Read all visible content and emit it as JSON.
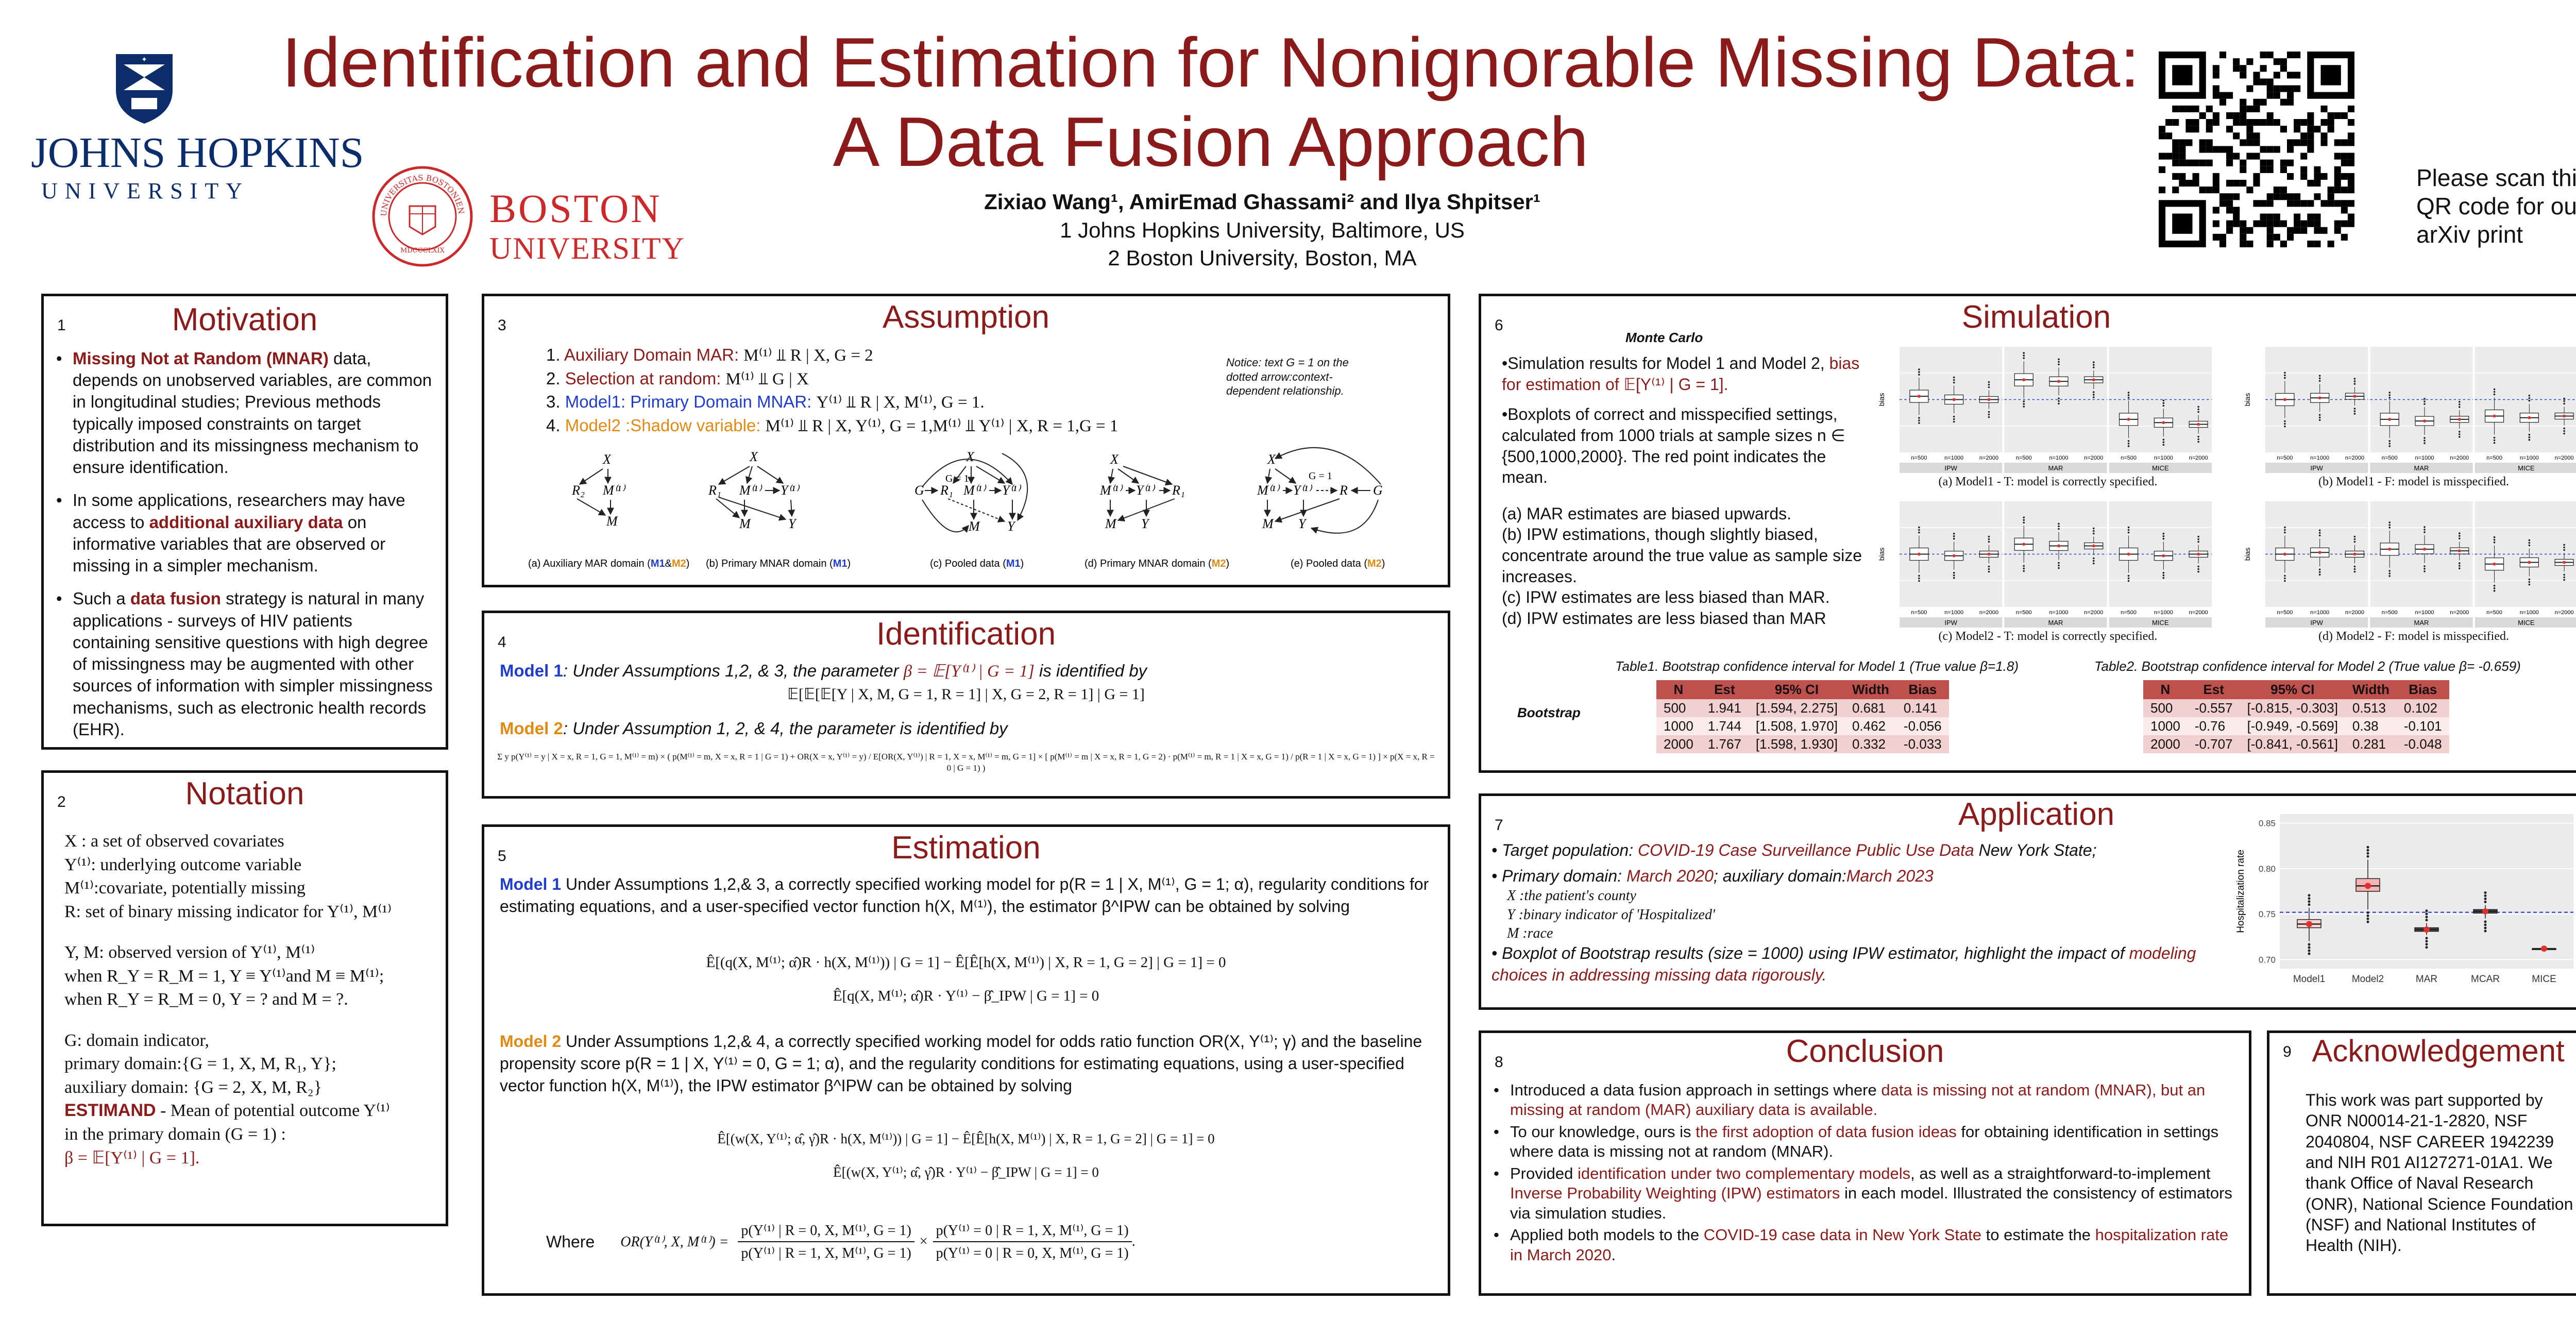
{
  "header": {
    "title_line1": "Identification and Estimation for Nonignorable Missing Data:",
    "title_line2": "A Data Fusion Approach",
    "authors": "Zixiao Wang¹, AmirEmad Ghassami² and Ilya Shpitser¹",
    "affil1": "1 Johns Hopkins University, Baltimore, US",
    "affil2": "2 Boston University, Boston, MA",
    "jhu_name": "JOHNS HOPKINS",
    "jhu_sub": "UNIVERSITY",
    "bu_name": "BOSTON",
    "bu_sub": "UNIVERSITY",
    "bu_seal_text": "UNIVERSITAS BOSTONIENSIS",
    "bu_seal_year": "MDCCCLXIX",
    "qr_note": "Please scan this QR code for our arXiv print"
  },
  "colors": {
    "accent": "#8b1a1a",
    "blue": "#1f3ccf",
    "orange": "#e08a12"
  },
  "motivation": {
    "num": "1",
    "title": "Motivation",
    "b1_hl": "Missing Not at Random (MNAR)",
    "b1_rest": " data, depends on unobserved variables, are common in longitudinal studies; Previous methods typically imposed constraints on target distribution and its missingness mechanism to ensure identification.",
    "b2_pre": "In some applications, researchers may have access to ",
    "b2_hl": "additional auxiliary data",
    "b2_rest": " on informative variables that are observed or missing in a simpler mechanism.",
    "b3_pre": "Such a ",
    "b3_hl": "data fusion",
    "b3_rest": " strategy is natural in many applications - surveys of HIV patients containing sensitive questions with high degree of missingness may be augmented with other sources of information with simpler missingness mechanisms, such as electronic health records (EHR)."
  },
  "notation": {
    "num": "2",
    "title": "Notation",
    "l1": "X : a set of observed covariates",
    "l2": "Y⁽¹⁾: underlying outcome variable",
    "l3": "M⁽¹⁾:covariate, potentially missing",
    "l4": "R: set of binary missing indicator for Y⁽¹⁾, M⁽¹⁾",
    "l5": "Y, M: observed version of Y⁽¹⁾, M⁽¹⁾",
    "l6": "when R_Y = R_M = 1, Y ≡ Y⁽¹⁾and M ≡ M⁽¹⁾;",
    "l7": "when R_Y = R_M = 0, Y = ? and M = ?.",
    "l8": "G: domain indicator,",
    "l9": "primary domain:{G = 1, X, M, R₁, Y};",
    "l10": "auxiliary domain: {G = 2, X, M, R₂}",
    "l11_hl": "ESTIMAND",
    "l11_rest": " - Mean of potential outcome Y⁽¹⁾",
    "l12": "in the primary domain (G = 1) :",
    "l13": "β = 𝔼[Y⁽¹⁾ | G = 1]."
  },
  "assumption": {
    "num": "3",
    "title": "Assumption",
    "a1_label": "Auxiliary Domain MAR:",
    "a1_eq": "M⁽¹⁾ ⫫ R | X, G = 2",
    "a2_label": "Selection at random:",
    "a2_eq": "M⁽¹⁾ ⫫ G | X",
    "a3_label": "Model1: Primary Domain MNAR:",
    "a3_eq": "Y⁽¹⁾ ⫫ R | X, M⁽¹⁾, G = 1.",
    "a4_label": "Model2 :Shadow variable:",
    "a4_eq": "M⁽¹⁾ ⫫ R | X, Y⁽¹⁾, G = 1,M⁽¹⁾ ⫫ Y⁽¹⁾ | X, R = 1,G = 1",
    "notice": "Notice: text G = 1 on the dotted arrow:context-dependent relationship.",
    "cap_a_pre": "(a) Auxiliary MAR domain (",
    "cap_a_m1": "M1",
    "cap_a_amp": "&",
    "cap_a_m2": "M2",
    "cap_a_post": ")",
    "cap_b_pre": "(b) Primary MNAR domain (",
    "cap_b_m": "M1",
    "cap_b_post": ")",
    "cap_c_pre": "(c) Pooled data (",
    "cap_c_m": "M1",
    "cap_c_post": ")",
    "cap_d_pre": "(d) Primary MNAR domain (",
    "cap_d_m": "M2",
    "cap_d_post": ")",
    "cap_e_pre": "(e) Pooled data (",
    "cap_e_m": "M2",
    "cap_e_post": ")",
    "dag_labels": {
      "X": "X",
      "R2": "R₂",
      "M1": "M⁽¹⁾",
      "M": "M",
      "R1": "R₁",
      "Y1": "Y⁽¹⁾",
      "Y": "Y",
      "G": "G",
      "G1": "G = 1",
      "R": "R"
    }
  },
  "identification": {
    "num": "4",
    "title": "Identification",
    "m1_label": "Model 1",
    "m1_text": ": Under Assumptions 1,2, & 3, the parameter ",
    "m1_beta": "β = 𝔼[Y⁽¹⁾ | G = 1]",
    "m1_tail": " is identified by",
    "m1_eq": "𝔼[𝔼[𝔼[Y | X, M, G = 1, R = 1] | X, G = 2, R = 1] | G = 1]",
    "m2_label": "Model 2",
    "m2_text": ": Under Assumption 1, 2, & 4,  the parameter is identified by",
    "m2_eq": "Σ y p(Y⁽¹⁾ = y | X = x, R = 1, G = 1, M⁽¹⁾ = m) × ( p(M⁽¹⁾ = m, X = x, R = 1 | G = 1) + OR(X = x, Y⁽¹⁾ = y) / E[OR(X, Y⁽¹⁾) | R = 1, X = x, M⁽¹⁾ = m, G = 1] × [ p(M⁽¹⁾ = m | X = x, R = 1, G = 2) · p(M⁽¹⁾ = m, R = 1 | X = x, G = 1) / p(R = 1 | X = x, G = 1) ] × p(X = x, R = 0 | G = 1) )"
  },
  "estimation": {
    "num": "5",
    "title": "Estimation",
    "m1_label": "Model 1",
    "m1_text": " Under Assumptions 1,2,& 3, a correctly specified working model for p(R = 1 | X, M⁽¹⁾, G = 1; α), regularity conditions for estimating equations, and a user-specified vector function h(X, M⁽¹⁾), the estimator β^IPW can be obtained by solving",
    "m1_eq1": "Ê[(q(X, M⁽¹⁾; α̂)R · h(X, M⁽¹⁾)) | G = 1] − Ê[Ê[h(X, M⁽¹⁾) | X, R = 1, G = 2] | G = 1] = 0",
    "m1_eq2": "Ê[q(X, M⁽¹⁾; α̂)R · Y⁽¹⁾ − β̂_IPW | G = 1] = 0",
    "m2_label": "Model 2",
    "m2_text": " Under Assumptions 1,2,& 4, a correctly specified working model for odds ratio function OR(X, Y⁽¹⁾; γ) and the baseline propensity score p(R = 1 | X, Y⁽¹⁾ = 0, G = 1; α), and the regularity conditions for estimating equations, using a user-specified vector function h(X, M⁽¹⁾),  the IPW estimator β^IPW can be obtained by solving",
    "m2_eq1": "Ê[(w(X, Y⁽¹⁾; α̂, γ̂)R · h(X, M⁽¹⁾)) | G = 1] − Ê[Ê[h(X, M⁽¹⁾) | X, R = 1, G = 2] | G = 1] = 0",
    "m2_eq2": "Ê[(w(X, Y⁽¹⁾; α̂, γ̂)R · Y⁽¹⁾ − β̂_IPW | G = 1] = 0",
    "where": "Where",
    "or_lhs": "OR(Y⁽¹⁾, X, M⁽¹⁾) =",
    "or_f1_num": "p(Y⁽¹⁾ | R = 0, X, M⁽¹⁾, G = 1)",
    "or_f1_den": "p(Y⁽¹⁾ | R = 1, X, M⁽¹⁾, G = 1)",
    "or_times": "×",
    "or_f2_num": "p(Y⁽¹⁾ = 0 | R = 1, X, M⁽¹⁾, G = 1)",
    "or_f2_den": "p(Y⁽¹⁾ = 0 | R = 0, X, M⁽¹⁾, G = 1)",
    "or_end": "."
  },
  "simulation": {
    "num": "6",
    "title": "Simulation",
    "mc": "Monte Carlo",
    "p1_pre": "•Simulation results for Model 1 and Model 2, ",
    "p1_hl": "bias for estimation of 𝔼[Y⁽¹⁾ | G = 1].",
    "p2": "•Boxplots of correct and misspecified settings, calculated from 1000 trials at sample sizes n ∈ {500,1000,2000}. The red point indicates the mean.",
    "r1": "(a) MAR estimates are biased upwards.",
    "r2": "(b) IPW estimations, though slightly biased, concentrate around the true value as sample size increases.",
    "r3": "(c) IPW estimates are less biased than MAR.",
    "r4": "(d) IPW estimates are less biased than MAR",
    "cap_a": "(a) Model1 - T: model is correctly specified.",
    "cap_b": "(b) Model1 - F: model is misspecified.",
    "cap_c": "(c) Model2 - T: model is correctly specified.",
    "cap_d": "(d) Model2 - F: model is misspecified.",
    "panel_groups": [
      "IPW",
      "MAR",
      "MICE"
    ],
    "ns": [
      "n=500",
      "n=1000",
      "n=2000"
    ],
    "ylab": "bias",
    "t1_caption": "Table1. Bootstrap confidence interval for Model 1 (True value β=1.8)",
    "t2_caption": "Table2. Bootstrap confidence interval for Model 2 (True value β= -0.659)",
    "bootstrap_label": "Bootstrap",
    "table_headers": [
      "N",
      "Est",
      "95% CI",
      "Width",
      "Bias"
    ],
    "t1_rows": [
      [
        "500",
        "1.941",
        "[1.594, 2.275]",
        "0.681",
        "0.141"
      ],
      [
        "1000",
        "1.744",
        "[1.508, 1.970]",
        "0.462",
        "-0.056"
      ],
      [
        "2000",
        "1.767",
        "[1.598, 1.930]",
        "0.332",
        "-0.033"
      ]
    ],
    "t2_rows": [
      [
        "500",
        "-0.557",
        "[-0.815, -0.303]",
        "0.513",
        "0.102"
      ],
      [
        "1000",
        "-0.76",
        "[-0.949, -0.569]",
        "0.38",
        "-0.101"
      ],
      [
        "2000",
        "-0.707",
        "[-0.841, -0.561]",
        "0.281",
        "-0.048"
      ]
    ]
  },
  "application": {
    "num": "7",
    "title": "Application",
    "b1_pre": "Target population: ",
    "b1_hl": "COVID-19 Case Surveillance Public Use Data",
    "b1_post": " New York State;",
    "b2_pre": "Primary domain: ",
    "b2_hl1": "March 2020",
    "b2_mid": "; auxiliary domain:",
    "b2_hl2": "March 2023",
    "v1": "X :the patient's county",
    "v2": "Y :binary indicator of 'Hospitalized'",
    "v3": "M :race",
    "b3_pre": "Boxplot of Bootstrap results (size = 1000) using IPW estimator, highlight the impact of ",
    "b3_hl": "modeling choices in addressing missing data rigorously."
  },
  "chart_data": {
    "type": "box",
    "title": "",
    "xlabel": "",
    "ylabel": "Hospitalization rate",
    "categories": [
      "Model1",
      "Model2",
      "MAR",
      "MCAR",
      "MICE"
    ],
    "ylim": [
      0.69,
      0.86
    ],
    "yticks": [
      0.7,
      0.75,
      0.8,
      0.85
    ],
    "reference_line": 0.752,
    "boxes": [
      {
        "q1": 0.735,
        "median": 0.739,
        "q3": 0.744,
        "whisker_low": 0.72,
        "whisker_high": 0.757,
        "mean": 0.739
      },
      {
        "q1": 0.775,
        "median": 0.781,
        "q3": 0.789,
        "whisker_low": 0.755,
        "whisker_high": 0.81,
        "mean": 0.781
      },
      {
        "q1": 0.731,
        "median": 0.733,
        "q3": 0.735,
        "whisker_low": 0.727,
        "whisker_high": 0.74,
        "mean": 0.733
      },
      {
        "q1": 0.751,
        "median": 0.753,
        "q3": 0.755,
        "whisker_low": 0.745,
        "whisker_high": 0.76,
        "mean": 0.753
      },
      {
        "q1": 0.712,
        "median": 0.712,
        "q3": 0.712,
        "whisker_low": 0.712,
        "whisker_high": 0.712,
        "mean": 0.712
      }
    ]
  },
  "conclusion": {
    "num": "8",
    "title": "Conclusion",
    "b1_pre": "Introduced a data fusion approach in settings where ",
    "b1_hl": "data is missing not at random (MNAR), but an missing at random (MAR) auxiliary data is available.",
    "b2_pre": "To our knowledge, ours is ",
    "b2_hl": "the first adoption of data fusion ideas",
    "b2_post": " for obtaining identification in settings where data is missing not at random (MNAR).",
    "b3_pre": "Provided ",
    "b3_hl1": "identification under two complementary models",
    "b3_mid": ", as well as a straightforward-to-implement ",
    "b3_hl2": "Inverse Probability Weighting (IPW) estimators",
    "b3_post": " in each model. Illustrated the consistency of estimators via simulation studies.",
    "b4_pre": "Applied both models to the ",
    "b4_hl1": "COVID-19 case data in New York State",
    "b4_mid": " to estimate the ",
    "b4_hl2": "hospitalization rate in March 2020",
    "b4_post": "."
  },
  "acknowledgement": {
    "num": "9",
    "title": "Acknowledgement",
    "text": "This work was part supported by ONR N00014-21-1-2820, NSF 2040804, NSF CAREER 1942239 and NIH R01 AI127271-01A1. We thank Office of Naval Research (ONR), National Science Foundation (NSF) and National Institutes of Health (NIH)."
  }
}
